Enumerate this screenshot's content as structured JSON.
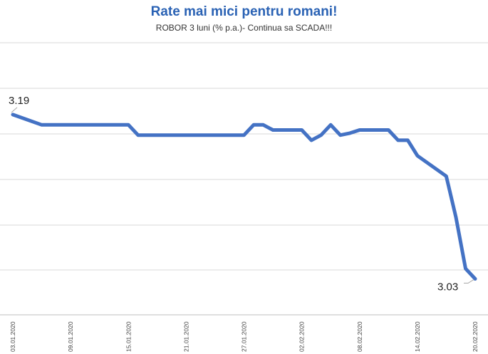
{
  "colors": {
    "title": "#2a62b4",
    "series": "#4472c4",
    "grid": "#d9d9d9"
  },
  "chart_data": {
    "type": "line",
    "title": "Rate mai mici pentru romani!",
    "subtitle": "ROBOR 3 luni (% p.a.)- Continua sa SCADA!!!",
    "xlabel": "",
    "ylabel": "",
    "ylim": [
      2.995,
      3.26
    ],
    "grid": true,
    "legend": "none",
    "x": [
      "03.01.2020",
      "06.01.2020",
      "07.01.2020",
      "08.01.2020",
      "09.01.2020",
      "10.01.2020",
      "13.01.2020",
      "14.01.2020",
      "15.01.2020",
      "16.01.2020",
      "17.01.2020",
      "20.01.2020",
      "21.01.2020",
      "22.01.2020",
      "23.01.2020",
      "27.01.2020",
      "28.01.2020",
      "29.01.2020",
      "30.01.2020",
      "31.01.2020",
      "02.02.2020",
      "03.02.2020",
      "04.02.2020",
      "05.02.2020",
      "06.02.2020",
      "07.02.2020",
      "08.02.2020",
      "10.02.2020",
      "11.02.2020",
      "12.02.2020",
      "13.02.2020",
      "14.02.2020",
      "17.02.2020",
      "18.02.2020",
      "19.02.2020",
      "20.02.2020"
    ],
    "tick_labels": [
      "03.01.2020",
      "09.01.2020",
      "15.01.2020",
      "21.01.2020",
      "27.01.2020",
      "02.02.2020",
      "08.02.2020",
      "14.02.2020",
      "20.02.2020"
    ],
    "series": [
      {
        "values": [
          3.19,
          3.18,
          3.18,
          3.18,
          3.18,
          3.18,
          3.18,
          3.18,
          3.18,
          3.17,
          3.17,
          3.17,
          3.17,
          3.17,
          3.17,
          3.17,
          3.18,
          3.18,
          3.175,
          3.175,
          3.175,
          3.165,
          3.17,
          3.18,
          3.17,
          3.172,
          3.175,
          3.175,
          3.175,
          3.165,
          3.165,
          3.15,
          3.13,
          3.09,
          3.04,
          3.03
        ]
      }
    ],
    "data_labels": [
      {
        "index": 0,
        "text": "3.19"
      },
      {
        "index": 35,
        "text": "3.03"
      }
    ]
  }
}
